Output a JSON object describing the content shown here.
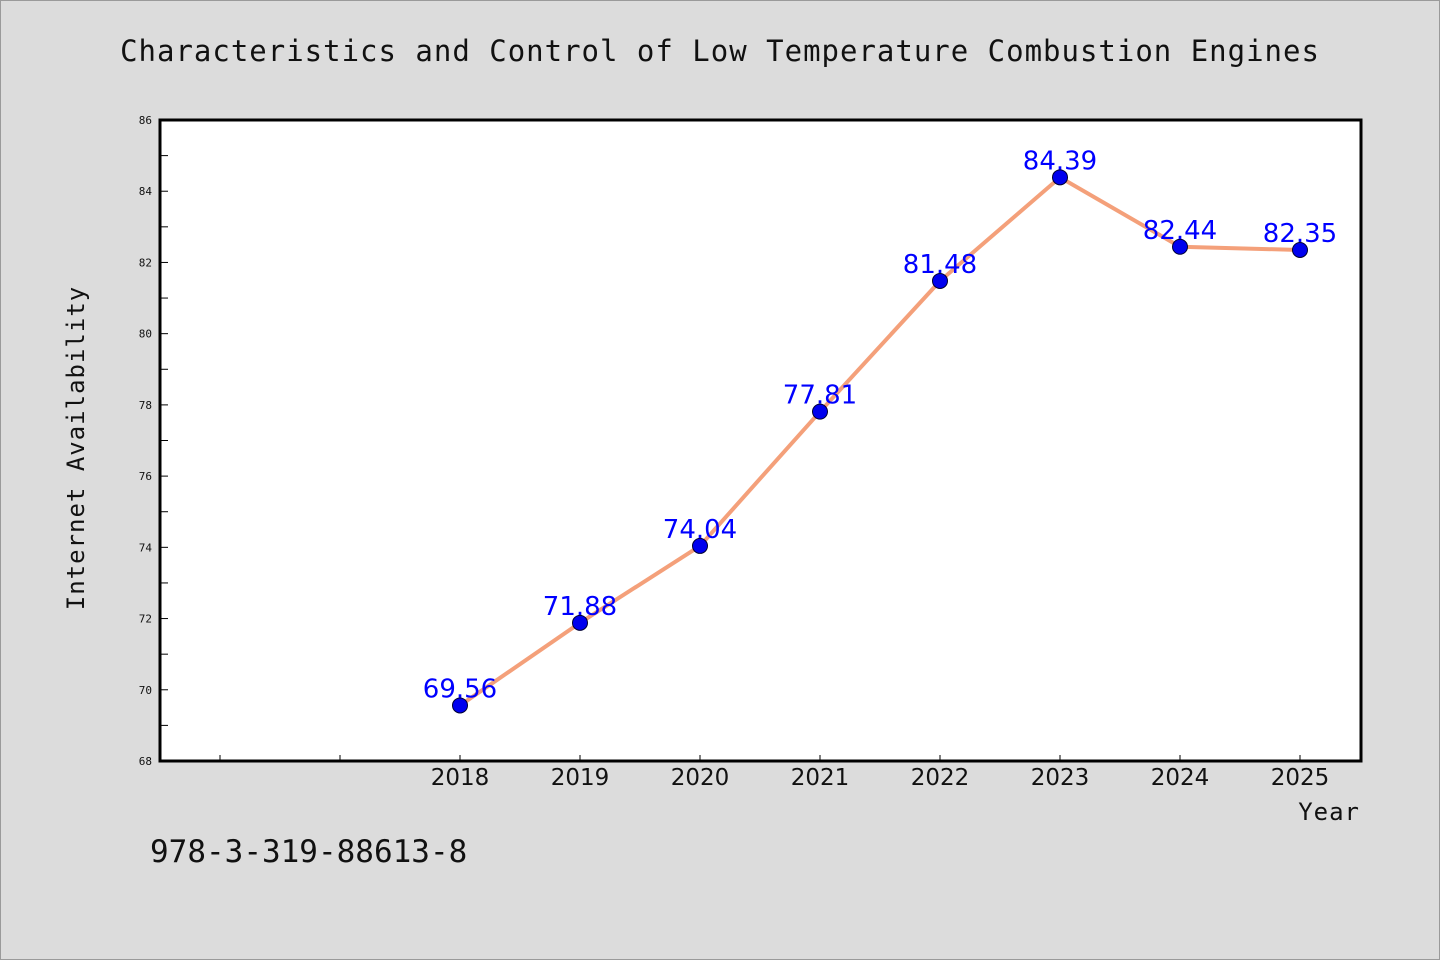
{
  "title": "Characteristics and Control of Low Temperature Combustion Engines",
  "isbn": "978-3-319-88613-8",
  "chart_data": {
    "type": "line",
    "title": "Characteristics and Control of Low Temperature Combustion Engines",
    "xlabel": "Year",
    "ylabel": "Internet Availability",
    "x": [
      "2018",
      "2019",
      "2020",
      "2021",
      "2022",
      "2023",
      "2024",
      "2025"
    ],
    "series": [
      {
        "values": [
          69.56,
          71.88,
          74.04,
          77.81,
          81.48,
          84.39,
          82.44,
          82.35
        ]
      }
    ],
    "data_labels": [
      "69.56",
      "71.88",
      "74.04",
      "77.81",
      "81.48",
      "84.39",
      "82.44",
      "82.35"
    ],
    "ylim": [
      68,
      86
    ],
    "yticks": [
      "68",
      "70",
      "72",
      "74",
      "76",
      "78",
      "80",
      "82",
      "84",
      "86"
    ],
    "grid": false,
    "legend": "none",
    "colors": {
      "line": "#f4a07a",
      "marker": "#0000ee",
      "label": "#0000ff",
      "background": "#dcdcdc",
      "plot_bg": "#ffffff"
    }
  }
}
